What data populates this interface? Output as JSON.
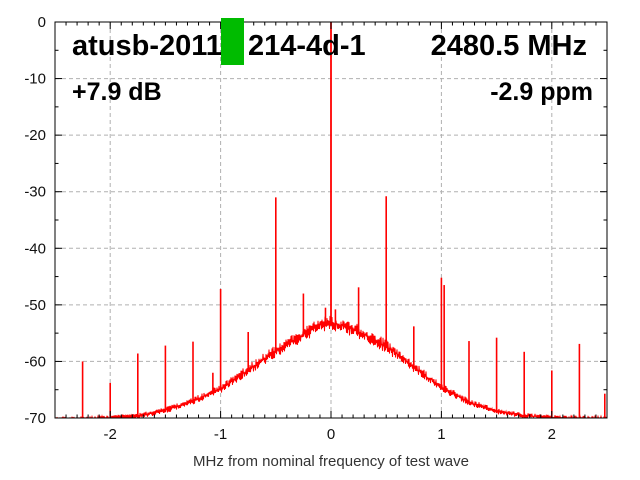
{
  "header": {
    "title_left": "atusb-2011",
    "title_right": "214-4d-1",
    "center_frequency": "2480.5 MHz",
    "gain": "+7.9 dB",
    "ppm": "-2.9 ppm",
    "marker_color": "#00bb00"
  },
  "chart_data": {
    "type": "line",
    "title": "",
    "xlabel": "MHz from nominal frequency of test wave",
    "ylabel": "",
    "xlim": [
      -2.5,
      2.5
    ],
    "ylim": [
      -70,
      0
    ],
    "x_major_ticks": [
      -2,
      -1,
      0,
      1,
      2
    ],
    "x_minor_step": 0.1,
    "y_major_ticks": [
      0,
      -10,
      -20,
      -30,
      -40,
      -50,
      -60,
      -70
    ],
    "y_minor_step": 5,
    "grid": true,
    "grid_color": "#b0b0b0",
    "trace_color": "#ff0000",
    "noise_floor_db": -70,
    "carrier": {
      "offset_mhz": 0.0,
      "level_db": 0.0,
      "clipped_at_top": true
    },
    "spurs": [
      [
        -2.25,
        -60.0
      ],
      [
        -2.0,
        -63.8
      ],
      [
        -1.75,
        -58.6
      ],
      [
        -1.5,
        -57.2
      ],
      [
        -1.25,
        -56.5
      ],
      [
        -1.07,
        -62.0
      ],
      [
        -1.0,
        -47.2
      ],
      [
        -0.75,
        -54.8
      ],
      [
        -0.5,
        -31.0
      ],
      [
        -0.25,
        -48.0
      ],
      [
        -0.05,
        -50.5
      ],
      [
        0.04,
        -50.8
      ],
      [
        0.25,
        -46.9
      ],
      [
        0.5,
        -30.8
      ],
      [
        0.75,
        -53.8
      ],
      [
        1.0,
        -45.2
      ],
      [
        1.025,
        -46.5
      ],
      [
        1.25,
        -56.4
      ],
      [
        1.5,
        -55.8
      ],
      [
        1.75,
        -58.3
      ],
      [
        2.0,
        -61.6
      ],
      [
        2.25,
        -56.9
      ],
      [
        2.48,
        -65.7
      ]
    ],
    "noise_hump_samples": [
      [
        -2.5,
        -70.2
      ],
      [
        -2.2,
        -70.2
      ],
      [
        -2.0,
        -70.0
      ],
      [
        -1.8,
        -69.7
      ],
      [
        -1.6,
        -69.1
      ],
      [
        -1.5,
        -68.6
      ],
      [
        -1.25,
        -67.0
      ],
      [
        -1.0,
        -64.8
      ],
      [
        -0.75,
        -61.5
      ],
      [
        -0.5,
        -58.1
      ],
      [
        -0.25,
        -55.2
      ],
      [
        -0.1,
        -53.6
      ],
      [
        0.0,
        -53.3
      ],
      [
        0.1,
        -53.6
      ],
      [
        0.25,
        -54.8
      ],
      [
        0.5,
        -57.3
      ],
      [
        0.75,
        -61.0
      ],
      [
        1.0,
        -64.6
      ],
      [
        1.25,
        -67.2
      ],
      [
        1.5,
        -68.8
      ],
      [
        1.75,
        -69.6
      ],
      [
        2.0,
        -69.9
      ],
      [
        2.2,
        -70.1
      ],
      [
        2.5,
        -70.1
      ]
    ]
  }
}
